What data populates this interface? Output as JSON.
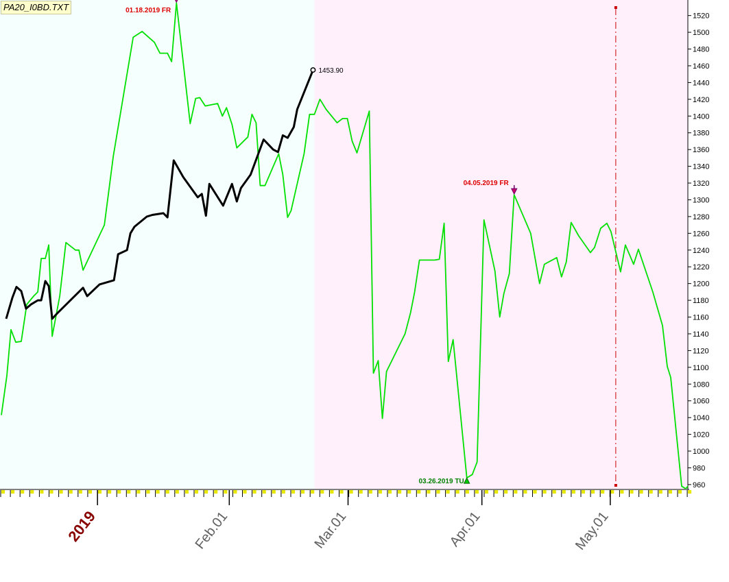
{
  "chart_data": {
    "type": "line",
    "title": "PA20_I0BD.TXT",
    "colors": {
      "series_1_line": "#00e000",
      "series_2_line": "#000000",
      "bg_left": "#f5fffd",
      "bg_right": "#fff0fb",
      "event_text": "#dd0000",
      "low_text": "#008000",
      "year_label": "#880000",
      "month_label": "#606060",
      "grid": "#cc0000"
    },
    "y_axis": {
      "min": 955,
      "max": 1532,
      "ticks": [
        960,
        980,
        1000,
        1020,
        1040,
        1060,
        1080,
        1100,
        1120,
        1140,
        1160,
        1180,
        1200,
        1220,
        1240,
        1260,
        1280,
        1300,
        1320,
        1340,
        1360,
        1380,
        1400,
        1420,
        1440,
        1460,
        1480,
        1500,
        1520
      ]
    },
    "x_axis": {
      "min": 0,
      "max": 100,
      "tick_labels": [
        {
          "label": "2019",
          "x": 14,
          "kind": "year"
        },
        {
          "label": "Feb.01",
          "x": 33.2,
          "kind": "month"
        },
        {
          "label": "Mar.01",
          "x": 50.5,
          "kind": "month"
        },
        {
          "label": "Apr.01",
          "x": 70,
          "kind": "month"
        },
        {
          "label": "May.01",
          "x": 88.7,
          "kind": "month"
        }
      ]
    },
    "series": [
      {
        "points": [
          [
            0,
            1043
          ],
          [
            0.8,
            1090
          ],
          [
            1.4,
            1145
          ],
          [
            2.1,
            1130
          ],
          [
            2.9,
            1131
          ],
          [
            3.7,
            1175
          ],
          [
            4.7,
            1185
          ],
          [
            5.3,
            1190
          ],
          [
            5.8,
            1230
          ],
          [
            6.4,
            1230
          ],
          [
            6.9,
            1246
          ],
          [
            7.4,
            1137
          ],
          [
            8.5,
            1185
          ],
          [
            9.4,
            1249
          ],
          [
            10.8,
            1240
          ],
          [
            11.3,
            1240
          ],
          [
            11.9,
            1216
          ],
          [
            15,
            1270
          ],
          [
            16.3,
            1352
          ],
          [
            19.2,
            1494
          ],
          [
            20.5,
            1501
          ],
          [
            22.3,
            1488
          ],
          [
            23.1,
            1475
          ],
          [
            24.2,
            1475
          ],
          [
            24.8,
            1465
          ],
          [
            25.5,
            1535
          ],
          [
            27.5,
            1391
          ],
          [
            28.3,
            1421
          ],
          [
            28.9,
            1422
          ],
          [
            29.7,
            1412
          ],
          [
            31.5,
            1415
          ],
          [
            32.2,
            1400
          ],
          [
            32.8,
            1410
          ],
          [
            33.6,
            1390
          ],
          [
            34.3,
            1362
          ],
          [
            35.9,
            1375
          ],
          [
            36.5,
            1402
          ],
          [
            37.1,
            1392
          ],
          [
            37.7,
            1317
          ],
          [
            38.4,
            1317
          ],
          [
            40.4,
            1355
          ],
          [
            41,
            1330
          ],
          [
            41.7,
            1279
          ],
          [
            42.2,
            1287
          ],
          [
            44.1,
            1355
          ],
          [
            44.9,
            1402
          ],
          [
            45.6,
            1402
          ],
          [
            46.4,
            1420
          ],
          [
            47.3,
            1408
          ],
          [
            48.9,
            1392
          ],
          [
            49.7,
            1397
          ],
          [
            50.4,
            1397
          ],
          [
            51.1,
            1370
          ],
          [
            51.8,
            1356
          ],
          [
            53.6,
            1406
          ],
          [
            54.2,
            1093
          ],
          [
            54.9,
            1108
          ],
          [
            55.5,
            1039
          ],
          [
            56.1,
            1095
          ],
          [
            58.8,
            1140
          ],
          [
            59.6,
            1165
          ],
          [
            60.2,
            1190
          ],
          [
            60.9,
            1228
          ],
          [
            63.1,
            1228
          ],
          [
            63.8,
            1229
          ],
          [
            64.5,
            1272
          ],
          [
            65.1,
            1107
          ],
          [
            65.8,
            1133
          ],
          [
            67.8,
            968
          ],
          [
            68.6,
            972
          ],
          [
            69.3,
            987
          ],
          [
            70.3,
            1276
          ],
          [
            71.9,
            1215
          ],
          [
            72.6,
            1160
          ],
          [
            73.2,
            1188
          ],
          [
            74,
            1212
          ],
          [
            74.7,
            1306
          ],
          [
            77.1,
            1260
          ],
          [
            78.4,
            1200
          ],
          [
            79.1,
            1223
          ],
          [
            80.9,
            1231
          ],
          [
            81.6,
            1208
          ],
          [
            82.3,
            1226
          ],
          [
            83,
            1273
          ],
          [
            84.1,
            1257
          ],
          [
            85.8,
            1237
          ],
          [
            86.4,
            1243
          ],
          [
            87.3,
            1266
          ],
          [
            88.2,
            1272
          ],
          [
            88.8,
            1262
          ],
          [
            90.2,
            1214
          ],
          [
            90.9,
            1246
          ],
          [
            92.1,
            1223
          ],
          [
            92.8,
            1241
          ],
          [
            94.9,
            1190
          ],
          [
            96.3,
            1150
          ],
          [
            97,
            1101
          ],
          [
            97.5,
            1088
          ],
          [
            99.1,
            958
          ],
          [
            99.7,
            955
          ],
          [
            100.4,
            962
          ],
          [
            101.1,
            977
          ],
          [
            102.9,
            1001
          ]
        ]
      },
      {
        "points": [
          [
            0.7,
            1158
          ],
          [
            1.6,
            1183
          ],
          [
            2.2,
            1196
          ],
          [
            2.9,
            1191
          ],
          [
            3.6,
            1170
          ],
          [
            4.3,
            1175
          ],
          [
            5.3,
            1180
          ],
          [
            5.8,
            1180
          ],
          [
            6.4,
            1203
          ],
          [
            6.9,
            1197
          ],
          [
            7.4,
            1158
          ],
          [
            8.2,
            1165
          ],
          [
            11.9,
            1195
          ],
          [
            12.5,
            1185
          ],
          [
            14.3,
            1199
          ],
          [
            16.4,
            1204
          ],
          [
            17,
            1235
          ],
          [
            18.3,
            1240
          ],
          [
            18.8,
            1260
          ],
          [
            19.4,
            1268
          ],
          [
            21.2,
            1280
          ],
          [
            22,
            1282
          ],
          [
            23.6,
            1284
          ],
          [
            24.2,
            1279
          ],
          [
            25.1,
            1347
          ],
          [
            26.5,
            1327
          ],
          [
            28.6,
            1303
          ],
          [
            29.2,
            1307
          ],
          [
            29.8,
            1281
          ],
          [
            30.3,
            1319
          ],
          [
            32.3,
            1293
          ],
          [
            33.6,
            1319
          ],
          [
            34.3,
            1298
          ],
          [
            34.9,
            1314
          ],
          [
            36.3,
            1330
          ],
          [
            38.2,
            1372
          ],
          [
            39.6,
            1360
          ],
          [
            40.3,
            1357
          ],
          [
            41,
            1377
          ],
          [
            41.7,
            1374
          ],
          [
            42.6,
            1387
          ],
          [
            43.1,
            1408
          ],
          [
            45.4,
            1455
          ]
        ]
      }
    ],
    "annotations": [
      {
        "text": "01.18.2019 FR",
        "x": 25.5,
        "y": 1535,
        "type": "high"
      },
      {
        "text": "04.05.2019 FR",
        "x": 74.7,
        "y": 1306,
        "type": "high"
      },
      {
        "text": "03.26.2019 TU",
        "x": 67.8,
        "y": 968,
        "type": "low"
      },
      {
        "text": "1453.90",
        "x": 45.4,
        "y": 1455,
        "type": "last_value"
      }
    ],
    "background_split_x": 45.6,
    "vertical_marker_x": 89.5,
    "grid": false,
    "legend": "none"
  }
}
